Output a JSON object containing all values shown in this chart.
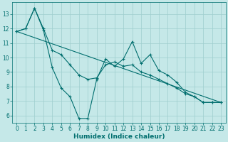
{
  "xlabel": "Humidex (Indice chaleur)",
  "background_color": "#c5e8e8",
  "grid_color": "#9ecece",
  "line_color": "#006e6e",
  "spine_color": "#006e6e",
  "xlim": [
    -0.5,
    23.5
  ],
  "ylim": [
    5.5,
    13.8
  ],
  "yticks": [
    6,
    7,
    8,
    9,
    10,
    11,
    12,
    13
  ],
  "xticks": [
    0,
    1,
    2,
    3,
    4,
    5,
    6,
    7,
    8,
    9,
    10,
    11,
    12,
    13,
    14,
    15,
    16,
    17,
    18,
    19,
    20,
    21,
    22,
    23
  ],
  "series1_x": [
    0,
    1,
    2,
    3,
    4,
    5,
    6,
    7,
    8,
    9,
    10,
    11,
    12,
    13,
    14,
    15,
    16,
    17,
    18,
    19,
    20,
    21,
    22,
    23
  ],
  "series1_y": [
    11.8,
    12.0,
    13.4,
    11.9,
    9.3,
    7.9,
    7.3,
    5.8,
    5.8,
    8.5,
    9.9,
    9.4,
    9.9,
    11.1,
    9.6,
    10.2,
    9.1,
    8.8,
    8.3,
    7.6,
    7.3,
    6.9,
    6.9,
    6.9
  ],
  "series2_x": [
    0,
    1,
    2,
    3,
    4,
    5,
    6,
    7,
    8,
    9,
    10,
    11,
    12,
    13,
    14,
    15,
    16,
    17,
    18,
    19,
    20,
    21,
    22,
    23
  ],
  "series2_y": [
    11.8,
    12.0,
    13.4,
    12.0,
    10.5,
    10.2,
    9.5,
    8.8,
    8.5,
    8.6,
    9.5,
    9.7,
    9.4,
    9.5,
    9.0,
    8.8,
    8.5,
    8.2,
    7.9,
    7.5,
    7.3,
    6.9,
    6.9,
    6.9
  ],
  "series3_x": [
    0,
    23
  ],
  "series3_y": [
    11.8,
    6.9
  ],
  "markersize": 3,
  "linewidth": 0.8,
  "tick_fontsize": 5.5,
  "xlabel_fontsize": 6.5
}
